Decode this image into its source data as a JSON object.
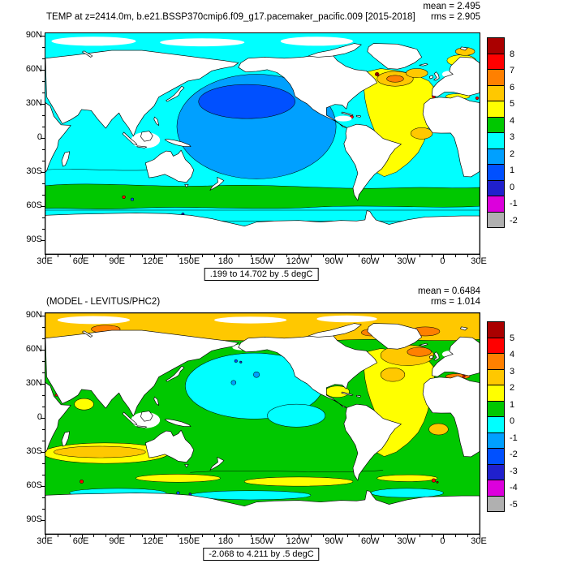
{
  "figure": {
    "panels": [
      {
        "title": "TEMP at z=2414.0m, b.e21.BSSP370cmip6.f09_g17.pacemaker_pacific.009 [2015-2018]",
        "mean": "mean = 2.495",
        "rms": "rms = 2.905",
        "range_note": ".199 to 14.702 by .5 degC",
        "x_tick_labels": [
          "30E",
          "60E",
          "90E",
          "120E",
          "150E",
          "180",
          "150W",
          "120W",
          "90W",
          "60W",
          "30W",
          "0",
          "30E"
        ],
        "y_tick_labels": [
          "90N",
          "60N",
          "30N",
          "0",
          "30S",
          "60S",
          "90S"
        ],
        "colorbar": {
          "labels": [
            "8",
            "7",
            "6",
            "5",
            "4",
            "3",
            "2",
            "1",
            "0",
            "-1",
            "-2"
          ],
          "colors": [
            "#aa0000",
            "#ff0000",
            "#ff8000",
            "#ffc800",
            "#ffff00",
            "#00c800",
            "#00ffff",
            "#00a0ff",
            "#0050ff",
            "#2020cd",
            "#dc00dc",
            "#b0b0b0"
          ]
        }
      },
      {
        "title": "(MODEL - LEVITUS/PHC2)",
        "mean": "mean = 0.6484",
        "rms": "rms = 1.014",
        "range_note": "-2.068 to 4.211 by .5 degC",
        "x_tick_labels": [
          "30E",
          "60E",
          "90E",
          "120E",
          "150E",
          "180",
          "150W",
          "120W",
          "90W",
          "60W",
          "30W",
          "0",
          "30E"
        ],
        "y_tick_labels": [
          "90N",
          "60N",
          "30N",
          "0",
          "30S",
          "60S",
          "90S"
        ],
        "colorbar": {
          "labels": [
            "5",
            "4",
            "3",
            "2",
            "1",
            "0",
            "-1",
            "-2",
            "-3",
            "-4",
            "-5"
          ],
          "colors": [
            "#aa0000",
            "#ff0000",
            "#ff8000",
            "#ffc800",
            "#ffff00",
            "#00c800",
            "#00ffff",
            "#00a0ff",
            "#0050ff",
            "#2020cd",
            "#dc00dc",
            "#b0b0b0"
          ]
        }
      }
    ]
  },
  "chart_data": [
    {
      "type": "heatmap",
      "subtype": "global lat-lon filled contour map",
      "title": "TEMP at z=2414.0m, b.e21.BSSP370cmip6.f09_g17.pacemaker_pacific.009 [2015-2018]",
      "variable": "TEMP",
      "units": "degC",
      "depth": "2414.0m",
      "stats": {
        "mean": 2.495,
        "rms": 2.905
      },
      "field_range": {
        "min": 0.199,
        "max": 14.702,
        "contour_interval": 0.5
      },
      "contour_levels": [
        -2,
        -1,
        0,
        1,
        2,
        3,
        4,
        5,
        6,
        7,
        8
      ],
      "palette_top_to_bottom": [
        "#aa0000",
        "#ff0000",
        "#ff8000",
        "#ffc800",
        "#ffff00",
        "#00c800",
        "#00ffff",
        "#00a0ff",
        "#0050ff",
        "#2020cd",
        "#dc00dc",
        "#b0b0b0"
      ],
      "x_ticks": [
        "30E",
        "60E",
        "90E",
        "120E",
        "150E",
        "180",
        "150W",
        "120W",
        "90W",
        "60W",
        "30W",
        "0",
        "30E"
      ],
      "y_ticks": [
        "90N",
        "60N",
        "30N",
        "0",
        "30S",
        "60S",
        "90S"
      ],
      "legend_position": "right",
      "grid": false,
      "approx_values_by_region": {
        "pacific_basin": "0.5 to 2",
        "indian_basin": "2 to 3",
        "atlantic_basin": "4 to 6",
        "north_atlantic_patches": "5 to 8",
        "southern_mid_latitudes": "3 to 4",
        "polar_shelves_and_land": "white / no data at this depth"
      }
    },
    {
      "type": "heatmap",
      "subtype": "global lat-lon filled contour map (model minus observations)",
      "title": "(MODEL - LEVITUS/PHC2)",
      "variable": "TEMP difference",
      "units": "degC",
      "stats": {
        "mean": 0.6484,
        "rms": 1.014
      },
      "field_range": {
        "min": -2.068,
        "max": 4.211,
        "contour_interval": 0.5
      },
      "contour_levels": [
        -5,
        -4,
        -3,
        -2,
        -1,
        0,
        1,
        2,
        3,
        4,
        5
      ],
      "palette_top_to_bottom": [
        "#aa0000",
        "#ff0000",
        "#ff8000",
        "#ffc800",
        "#ffff00",
        "#00c800",
        "#00ffff",
        "#00a0ff",
        "#0050ff",
        "#2020cd",
        "#dc00dc",
        "#b0b0b0"
      ],
      "x_ticks": [
        "30E",
        "60E",
        "90E",
        "120E",
        "150E",
        "180",
        "150W",
        "120W",
        "90W",
        "60W",
        "30W",
        "0",
        "30E"
      ],
      "y_ticks": [
        "90N",
        "60N",
        "30N",
        "0",
        "30S",
        "60S",
        "90S"
      ],
      "legend_position": "right",
      "grid": false,
      "approx_values_by_region": {
        "north_pacific": "-1 to 0",
        "tropics_and_southern_oceans": "0 to 1",
        "atlantic": "1 to 3",
        "arctic_and_north_atlantic": "2 to 4",
        "south_indian_30S_band": "2 to 3"
      }
    }
  ]
}
